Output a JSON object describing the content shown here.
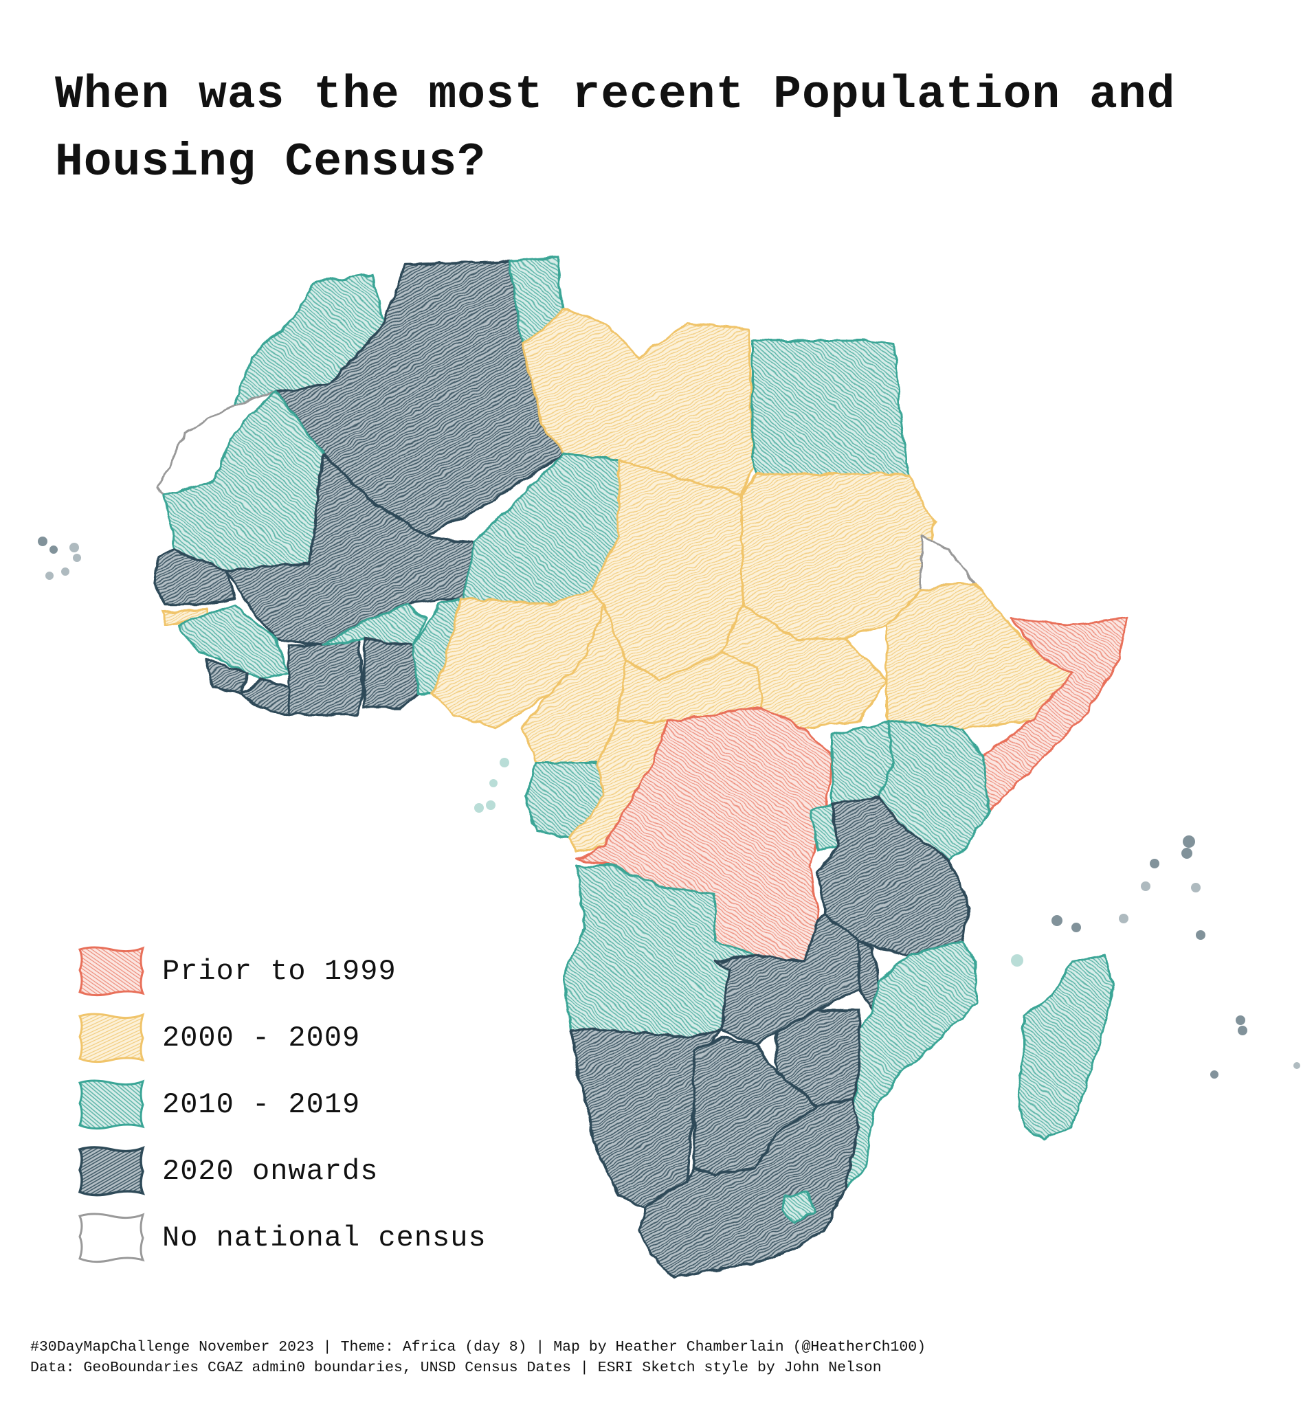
{
  "title": "When was the most recent Population and Housing Census?",
  "legend": {
    "items": [
      {
        "label": "Prior to 1999",
        "color": "#e8705a"
      },
      {
        "label": "2000 - 2009",
        "color": "#f0c46a"
      },
      {
        "label": "2010 - 2019",
        "color": "#3aa596"
      },
      {
        "label": "2020 onwards",
        "color": "#2e4a58"
      },
      {
        "label": "No national census",
        "color": "#999999"
      }
    ]
  },
  "footer": {
    "line1": "#30DayMapChallenge November 2023 | Theme: Africa (day 8) | Map by Heather Chamberlain (@HeatherCh100)",
    "line2": "Data: GeoBoundaries CGAZ admin0 boundaries, UNSD Census Dates | ESRI Sketch style by John Nelson"
  }
}
